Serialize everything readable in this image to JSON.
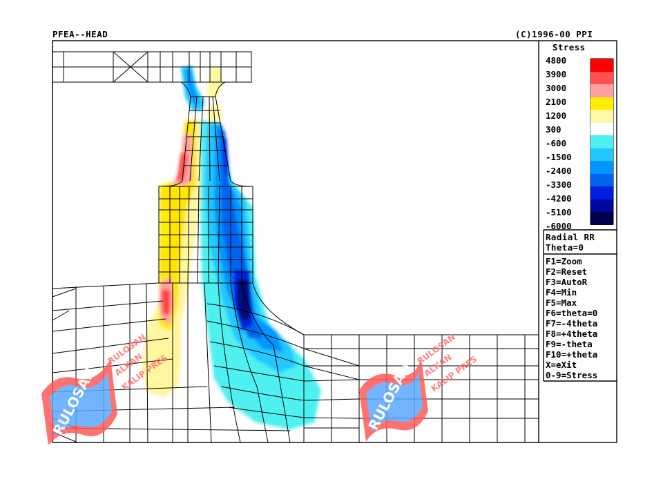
{
  "header": {
    "program": "PFEA--HEAD",
    "copyright": "(C)1996-00 PPI"
  },
  "legend": {
    "title": "Stress",
    "levels": [
      {
        "label": "4800",
        "color": "#ff0000"
      },
      {
        "label": "3900",
        "color": "#ff5050"
      },
      {
        "label": "3000",
        "color": "#ffa0a0"
      },
      {
        "label": "2100",
        "color": "#ffee00"
      },
      {
        "label": "1200",
        "color": "#fff8a8"
      },
      {
        "label": "300",
        "color": "#ffffff"
      },
      {
        "label": "-600",
        "color": "#50f0f0"
      },
      {
        "label": "-1500",
        "color": "#20c8ff"
      },
      {
        "label": "-2400",
        "color": "#0096ff"
      },
      {
        "label": "-3300",
        "color": "#0064f0"
      },
      {
        "label": "-4200",
        "color": "#0020e0"
      },
      {
        "label": "-5100",
        "color": "#0008a0"
      },
      {
        "label": "-6000",
        "color": "#000050"
      }
    ]
  },
  "view_info": {
    "component": "Radial RR",
    "theta": "Theta=0"
  },
  "keys": [
    "F1=Zoom",
    "F2=Reset",
    "F3=AutoR",
    "F4=Min",
    "F5=Max",
    "F6=theta=0",
    "F7=-4theta",
    "F8=+4theta",
    "F9=-theta",
    "F10=+theta",
    "X=eXit",
    "0-9=Stress"
  ],
  "watermark": {
    "logo_text": "RULOSAN",
    "caption_lines": [
      "RULOSAN",
      "ALKAN",
      "KALIP PRES"
    ]
  }
}
